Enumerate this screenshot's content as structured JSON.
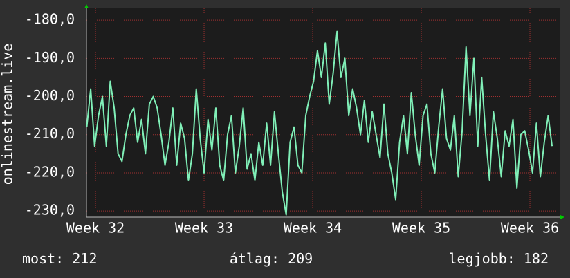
{
  "chart_data": {
    "type": "line",
    "ylabel": "onlinestream.live",
    "x": [
      31.92,
      31.956,
      31.992,
      32.028,
      32.064,
      32.1,
      32.136,
      32.172,
      32.208,
      32.244,
      32.28,
      32.316,
      32.352,
      32.388,
      32.424,
      32.46,
      32.496,
      32.532,
      32.568,
      32.604,
      32.64,
      32.676,
      32.712,
      32.748,
      32.784,
      32.82,
      32.856,
      32.892,
      32.928,
      32.964,
      33,
      33.036,
      33.072,
      33.108,
      33.144,
      33.18,
      33.216,
      33.252,
      33.288,
      33.324,
      33.36,
      33.396,
      33.432,
      33.468,
      33.504,
      33.54,
      33.576,
      33.612,
      33.648,
      33.684,
      33.72,
      33.756,
      33.792,
      33.828,
      33.864,
      33.9,
      33.936,
      33.972,
      34.008,
      34.044,
      34.08,
      34.116,
      34.152,
      34.188,
      34.224,
      34.26,
      34.296,
      34.332,
      34.368,
      34.404,
      34.44,
      34.476,
      34.512,
      34.548,
      34.584,
      34.62,
      34.656,
      34.692,
      34.728,
      34.764,
      34.8,
      34.836,
      34.872,
      34.908,
      34.944,
      34.98,
      35.016,
      35.052,
      35.088,
      35.124,
      35.16,
      35.196,
      35.232,
      35.268,
      35.304,
      35.34,
      35.376,
      35.412,
      35.448,
      35.484,
      35.52,
      35.556,
      35.592,
      35.628,
      35.664,
      35.7,
      35.736,
      35.772,
      35.808,
      35.844,
      35.88,
      35.916,
      35.952,
      35.988,
      36.024,
      36.06,
      36.096,
      36.132,
      36.168,
      36.204
    ],
    "series": [
      {
        "name": "onlinestream.live",
        "color": "#80f0b8",
        "values": [
          -208,
          -198,
          -213,
          -205,
          -200,
          -213,
          -196,
          -203,
          -215,
          -217,
          -210,
          -205,
          -203,
          -212,
          -206,
          -215,
          -202,
          -200,
          -203,
          -210,
          -218,
          -212,
          -203,
          -218,
          -207,
          -211,
          -222,
          -215,
          -198,
          -211,
          -220,
          -206,
          -214,
          -203,
          -218,
          -222,
          -210,
          -205,
          -220,
          -213,
          -203,
          -219,
          -215,
          -222,
          -212,
          -218,
          -207,
          -218,
          -204,
          -215,
          -225,
          -231,
          -212,
          -208,
          -218,
          -220,
          -205,
          -200,
          -196,
          -188,
          -195,
          -186,
          -202,
          -194,
          -183,
          -195,
          -190,
          -205,
          -198,
          -203,
          -210,
          -201,
          -212,
          -204,
          -210,
          -216,
          -202,
          -215,
          -220,
          -227,
          -212,
          -205,
          -215,
          -199,
          -210,
          -218,
          -205,
          -202,
          -215,
          -220,
          -208,
          -198,
          -211,
          -214,
          -205,
          -221,
          -209,
          -187,
          -205,
          -190,
          -213,
          -195,
          -210,
          -222,
          -204,
          -211,
          -221,
          -209,
          -213,
          -206,
          -224,
          -210,
          -209,
          -214,
          -220,
          -207,
          -221,
          -212,
          -205,
          -213
        ]
      }
    ],
    "xlim": [
      31.917,
      36.28
    ],
    "ylim": [
      -231.6,
      -176.9
    ],
    "xticks": [
      {
        "value": 32,
        "label": "Week 32"
      },
      {
        "value": 33,
        "label": "Week 33"
      },
      {
        "value": 34,
        "label": "Week 34"
      },
      {
        "value": 35,
        "label": "Week 35"
      },
      {
        "value": 36,
        "label": "Week 36"
      }
    ],
    "yticks": [
      {
        "value": -230,
        "label": "-230,0"
      },
      {
        "value": -220,
        "label": "-220,0"
      },
      {
        "value": -210,
        "label": "-210,0"
      },
      {
        "value": -200,
        "label": "-200,0"
      },
      {
        "value": -190,
        "label": "-190,0"
      },
      {
        "value": -180,
        "label": "-180,0"
      }
    ],
    "grid": true,
    "stats": [
      {
        "label": "most:",
        "value": 212
      },
      {
        "label": "átlag:",
        "value": 209
      },
      {
        "label": "legjobb:",
        "value": 182
      }
    ]
  }
}
